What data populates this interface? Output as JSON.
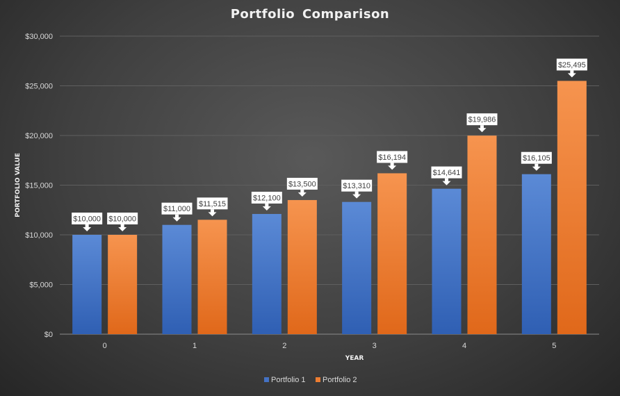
{
  "chart_data": {
    "type": "bar",
    "title": "Portfolio  Comparison",
    "xlabel": "YEAR",
    "ylabel": "PORTFOLIO VALUE",
    "categories": [
      "0",
      "1",
      "2",
      "3",
      "4",
      "5"
    ],
    "series": [
      {
        "name": "Portfolio 1",
        "color": "#4472c4",
        "values": [
          10000,
          11000,
          12100,
          13310,
          14641,
          16105
        ],
        "labels": [
          "$10,000",
          "$11,000",
          "$12,100",
          "$13,310",
          "$14,641",
          "$16,105"
        ]
      },
      {
        "name": "Portfolio 2",
        "color": "#ed7d31",
        "values": [
          10000,
          11515,
          13500,
          16194,
          19986,
          25495
        ],
        "labels": [
          "$10,000",
          "$11,515",
          "$13,500",
          "$16,194",
          "$19,986",
          "$25,495"
        ]
      }
    ],
    "ylim": [
      0,
      30000
    ],
    "yticks": [
      0,
      5000,
      10000,
      15000,
      20000,
      25000,
      30000
    ],
    "ytick_labels": [
      "$0",
      "$5,000",
      "$10,000",
      "$15,000",
      "$20,000",
      "$25,000",
      "$30,000"
    ],
    "grid": true,
    "legend": "bottom"
  }
}
